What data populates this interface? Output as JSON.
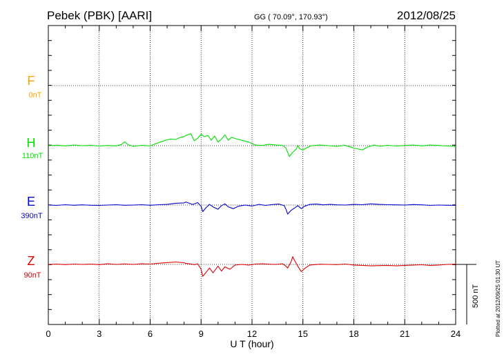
{
  "header": {
    "title": "Pebek (PBK)  [AARI]",
    "coords": "GG ( 70.09°, 170.93°)",
    "date": "2012/08/25"
  },
  "footer_note": "Plotted at 2012/09/25 01:30 UT",
  "colors": {
    "F": "#ffa500",
    "H": "#00e000",
    "E": "#0000cc",
    "Z": "#dd0000"
  },
  "chart_data": {
    "type": "line",
    "title": "Pebek (PBK)  [AARI]",
    "xlabel": "U T (hour)",
    "ylabel": "",
    "xlim": [
      0,
      24
    ],
    "x_ticks": [
      0,
      3,
      6,
      9,
      12,
      15,
      18,
      21,
      24
    ],
    "x_tick_labels": [
      "0",
      "3",
      "6",
      "9",
      "12",
      "15",
      "18",
      "21",
      "24"
    ],
    "scale_bar": {
      "label": "500 nT",
      "value": 500
    },
    "grid": true,
    "series": [
      {
        "name": "F",
        "baseline_label": "0nT",
        "values": []
      },
      {
        "name": "H",
        "baseline_label": "110nT",
        "points": [
          [
            0,
            0
          ],
          [
            0.5,
            4
          ],
          [
            1,
            -2
          ],
          [
            1.5,
            5
          ],
          [
            2,
            0
          ],
          [
            2.5,
            3
          ],
          [
            3,
            -3
          ],
          [
            3.5,
            2
          ],
          [
            4,
            -2
          ],
          [
            4.3,
            10
          ],
          [
            4.5,
            32
          ],
          [
            4.7,
            8
          ],
          [
            5,
            -5
          ],
          [
            5.5,
            3
          ],
          [
            6,
            -2
          ],
          [
            6.3,
            15
          ],
          [
            6.6,
            30
          ],
          [
            6.9,
            45
          ],
          [
            7.2,
            55
          ],
          [
            7.5,
            52
          ],
          [
            7.8,
            70
          ],
          [
            8.0,
            75
          ],
          [
            8.1,
            85
          ],
          [
            8.4,
            100
          ],
          [
            8.6,
            40
          ],
          [
            8.8,
            62
          ],
          [
            9.0,
            95
          ],
          [
            9.2,
            75
          ],
          [
            9.4,
            85
          ],
          [
            9.6,
            45
          ],
          [
            9.8,
            80
          ],
          [
            10.0,
            30
          ],
          [
            10.2,
            55
          ],
          [
            10.4,
            90
          ],
          [
            10.6,
            45
          ],
          [
            10.8,
            70
          ],
          [
            11.0,
            60
          ],
          [
            11.4,
            45
          ],
          [
            11.8,
            30
          ],
          [
            12.2,
            5
          ],
          [
            12.6,
            2
          ],
          [
            13,
            12
          ],
          [
            13.4,
            5
          ],
          [
            13.8,
            3
          ],
          [
            14.0,
            -20
          ],
          [
            14.2,
            -90
          ],
          [
            14.4,
            -55
          ],
          [
            14.6,
            -30
          ],
          [
            14.7,
            2
          ],
          [
            14.8,
            -25
          ],
          [
            15.0,
            -35
          ],
          [
            15.2,
            -20
          ],
          [
            15.5,
            0
          ],
          [
            16,
            5
          ],
          [
            16.5,
            0
          ],
          [
            17,
            -5
          ],
          [
            17.5,
            3
          ],
          [
            18,
            -20
          ],
          [
            18.5,
            -35
          ],
          [
            18.8,
            -12
          ],
          [
            19.2,
            5
          ],
          [
            19.5,
            -5
          ],
          [
            20,
            3
          ],
          [
            20.5,
            -3
          ],
          [
            21,
            2
          ],
          [
            21.5,
            5
          ],
          [
            22,
            -2
          ],
          [
            22.5,
            5
          ],
          [
            23,
            2
          ],
          [
            23.5,
            -3
          ],
          [
            24,
            -5
          ]
        ]
      },
      {
        "name": "E",
        "baseline_label": "390nT",
        "points": [
          [
            0,
            0
          ],
          [
            0.5,
            -3
          ],
          [
            1,
            3
          ],
          [
            1.5,
            -2
          ],
          [
            2,
            2
          ],
          [
            2.5,
            -2
          ],
          [
            3,
            -3
          ],
          [
            3.5,
            0
          ],
          [
            4,
            3
          ],
          [
            4.5,
            -2
          ],
          [
            5,
            0
          ],
          [
            5.5,
            3
          ],
          [
            6,
            -2
          ],
          [
            6.5,
            3
          ],
          [
            7,
            5
          ],
          [
            7.5,
            15
          ],
          [
            8,
            18
          ],
          [
            8.1,
            25
          ],
          [
            8.3,
            15
          ],
          [
            8.5,
            5
          ],
          [
            8.8,
            20
          ],
          [
            9.0,
            -10
          ],
          [
            9.1,
            -55
          ],
          [
            9.3,
            -20
          ],
          [
            9.5,
            5
          ],
          [
            9.7,
            -15
          ],
          [
            10.0,
            -35
          ],
          [
            10.2,
            -5
          ],
          [
            10.4,
            10
          ],
          [
            10.6,
            -15
          ],
          [
            10.9,
            -30
          ],
          [
            11.2,
            -10
          ],
          [
            11.6,
            0
          ],
          [
            12,
            -8
          ],
          [
            12.4,
            5
          ],
          [
            12.8,
            -3
          ],
          [
            13.2,
            4
          ],
          [
            13.6,
            8
          ],
          [
            13.9,
            -5
          ],
          [
            14.0,
            -35
          ],
          [
            14.1,
            -75
          ],
          [
            14.3,
            -45
          ],
          [
            14.5,
            -25
          ],
          [
            14.7,
            -5
          ],
          [
            14.9,
            -30
          ],
          [
            15.1,
            -10
          ],
          [
            15.4,
            5
          ],
          [
            15.8,
            8
          ],
          [
            16.2,
            2
          ],
          [
            16.6,
            5
          ],
          [
            17,
            2
          ],
          [
            17.5,
            0
          ],
          [
            18,
            5
          ],
          [
            18.5,
            3
          ],
          [
            19,
            10
          ],
          [
            19.5,
            5
          ],
          [
            20,
            3
          ],
          [
            20.5,
            2
          ],
          [
            21,
            0
          ],
          [
            21.5,
            4
          ],
          [
            22,
            2
          ],
          [
            22.5,
            -3
          ],
          [
            23,
            0
          ],
          [
            23.5,
            -2
          ],
          [
            24,
            -3
          ]
        ]
      },
      {
        "name": "Z",
        "baseline_label": "90nT",
        "points": [
          [
            0,
            0
          ],
          [
            0.5,
            3
          ],
          [
            1,
            -2
          ],
          [
            1.5,
            3
          ],
          [
            2,
            0
          ],
          [
            2.5,
            3
          ],
          [
            3,
            -2
          ],
          [
            3.5,
            5
          ],
          [
            4,
            0
          ],
          [
            4.5,
            4
          ],
          [
            5,
            0
          ],
          [
            5.5,
            5
          ],
          [
            6,
            3
          ],
          [
            6.5,
            10
          ],
          [
            7,
            15
          ],
          [
            7.5,
            20
          ],
          [
            8,
            14
          ],
          [
            8.1,
            8
          ],
          [
            8.3,
            5
          ],
          [
            8.6,
            -2
          ],
          [
            8.8,
            5
          ],
          [
            9.0,
            -40
          ],
          [
            9.1,
            -100
          ],
          [
            9.3,
            -65
          ],
          [
            9.5,
            -30
          ],
          [
            9.7,
            -70
          ],
          [
            10.0,
            -15
          ],
          [
            10.2,
            -55
          ],
          [
            10.4,
            -20
          ],
          [
            10.7,
            -40
          ],
          [
            11.0,
            -5
          ],
          [
            11.4,
            0
          ],
          [
            11.8,
            -5
          ],
          [
            12.2,
            3
          ],
          [
            12.6,
            5
          ],
          [
            13,
            2
          ],
          [
            13.4,
            0
          ],
          [
            13.8,
            5
          ],
          [
            14.0,
            -15
          ],
          [
            14.1,
            -30
          ],
          [
            14.3,
            20
          ],
          [
            14.4,
            65
          ],
          [
            14.5,
            35
          ],
          [
            14.7,
            -15
          ],
          [
            14.9,
            -60
          ],
          [
            15.1,
            -35
          ],
          [
            15.4,
            -5
          ],
          [
            16,
            2
          ],
          [
            16.5,
            0
          ],
          [
            17,
            -2
          ],
          [
            17.5,
            3
          ],
          [
            18,
            -5
          ],
          [
            18.5,
            -8
          ],
          [
            19,
            -12
          ],
          [
            19.5,
            -10
          ],
          [
            20,
            -8
          ],
          [
            20.5,
            -12
          ],
          [
            21,
            -8
          ],
          [
            21.5,
            -5
          ],
          [
            22,
            -3
          ],
          [
            22.5,
            -8
          ],
          [
            23,
            -5
          ],
          [
            23.5,
            0
          ],
          [
            24,
            2
          ]
        ]
      }
    ]
  }
}
